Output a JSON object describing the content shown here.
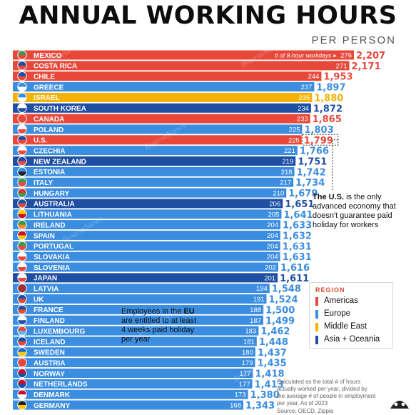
{
  "title": "ANNUAL WORKING HOURS",
  "subtitle": "PER PERSON",
  "colors": {
    "Americas": "#e8483a",
    "Europe": "#3b8de0",
    "Middle East": "#f5b300",
    "Asia + Oceania": "#1f4fa3"
  },
  "chart_data": {
    "type": "bar",
    "title": "ANNUAL WORKING HOURS",
    "subtitle": "PER PERSON",
    "series_note": "# of 8-hour workdays",
    "categories": [
      "MEXICO",
      "COSTA RICA",
      "CHILE",
      "GREECE",
      "ISRAEL",
      "SOUTH KOREA",
      "CANADA",
      "POLAND",
      "U.S.",
      "CZECHIA",
      "NEW ZEALAND",
      "ESTONIA",
      "ITALY",
      "HUNGARY",
      "AUSTRALIA",
      "LITHUANIA",
      "IRELAND",
      "SPAIN",
      "PORTUGAL",
      "SLOVAKIA",
      "SLOVENIA",
      "JAPAN",
      "LATVIA",
      "UK",
      "FRANCE",
      "FINLAND",
      "LUXEMBOURG",
      "ICELAND",
      "SWEDEN",
      "AUSTRIA",
      "NORWAY",
      "NETHERLANDS",
      "DENMARK",
      "GERMANY"
    ],
    "hours": [
      "2,207",
      "2,171",
      "1,953",
      "1,897",
      "1,880",
      "1,872",
      "1,865",
      "1,803",
      "1,799",
      "1,766",
      "1,751",
      "1,742",
      "1,734",
      "1,679",
      "1,651",
      "1,641",
      "1,633",
      "1,632",
      "1,631",
      "1,631",
      "1,616",
      "1,611",
      "1,548",
      "1,524",
      "1,500",
      "1,499",
      "1,462",
      "1,448",
      "1,437",
      "1,435",
      "1,418",
      "1,413",
      "1,380",
      "1,343"
    ],
    "values": [
      2207,
      2171,
      1953,
      1897,
      1880,
      1872,
      1865,
      1803,
      1799,
      1766,
      1751,
      1742,
      1734,
      1679,
      1651,
      1641,
      1633,
      1632,
      1631,
      1631,
      1616,
      1611,
      1548,
      1524,
      1500,
      1499,
      1462,
      1448,
      1437,
      1435,
      1418,
      1413,
      1380,
      1343
    ],
    "workdays": [
      276,
      271,
      244,
      237,
      235,
      234,
      233,
      225,
      225,
      221,
      219,
      218,
      217,
      210,
      206,
      205,
      204,
      204,
      204,
      204,
      202,
      201,
      194,
      191,
      188,
      187,
      183,
      181,
      180,
      179,
      177,
      177,
      173,
      168
    ],
    "regions": [
      "Americas",
      "Americas",
      "Americas",
      "Europe",
      "Middle East",
      "Asia + Oceania",
      "Americas",
      "Europe",
      "Americas",
      "Europe",
      "Asia + Oceania",
      "Europe",
      "Europe",
      "Europe",
      "Asia + Oceania",
      "Europe",
      "Europe",
      "Europe",
      "Europe",
      "Europe",
      "Europe",
      "Asia + Oceania",
      "Europe",
      "Europe",
      "Europe",
      "Europe",
      "Europe",
      "Europe",
      "Europe",
      "Europe",
      "Europe",
      "Europe",
      "Europe",
      "Europe"
    ]
  },
  "legend": {
    "title": "REGION",
    "items": [
      "Americas",
      "Europe",
      "Middle East",
      "Asia + Oceania"
    ]
  },
  "annotations": {
    "us_bold": "The U.S.",
    "us_rest": " is the only advanced economy that doesn't guarantee paid holiday for workers",
    "eu_before": "Employees in the ",
    "eu_bold": "EU",
    "eu_after": " are entitled to at least 4 weeks paid holiday per year"
  },
  "footnote": "Calculated as the total # of hours actually worked per year, divided by the average # of people in employment per year. As of 2023",
  "source": "Source: OECD, Zippia",
  "watermark": "BourseNews"
}
